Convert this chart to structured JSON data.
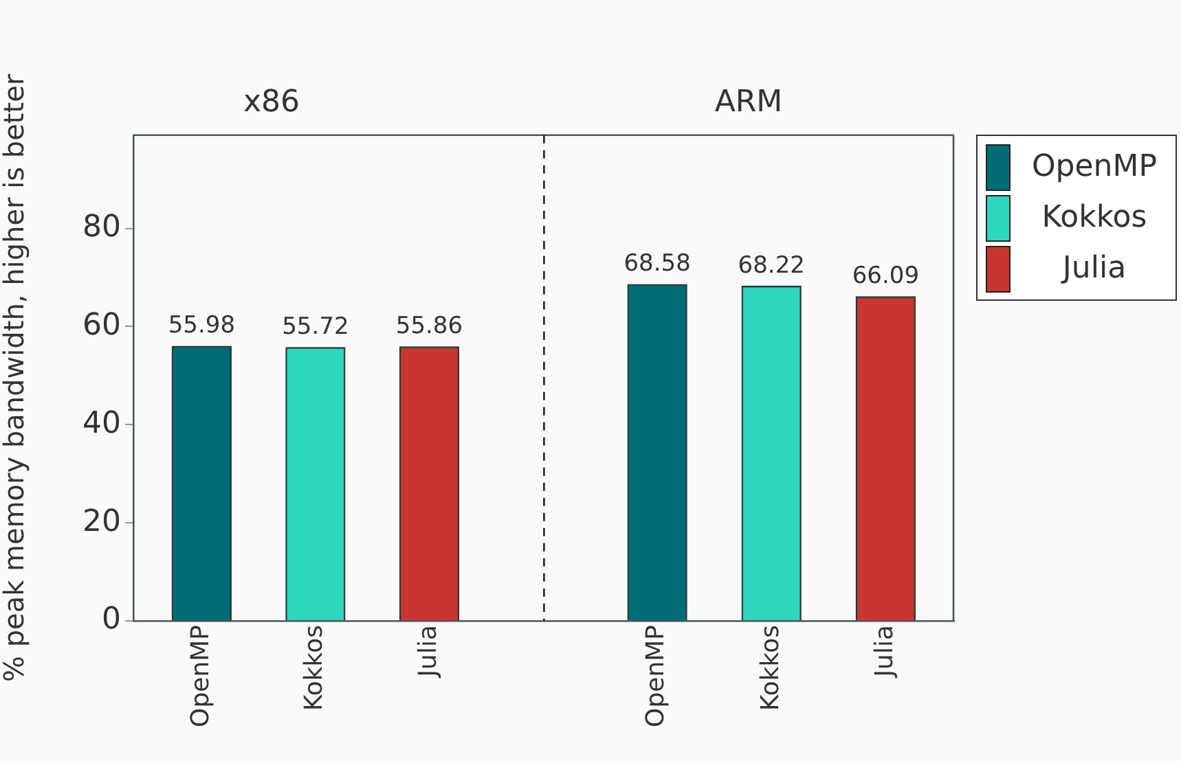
{
  "chart_data": [
    {
      "type": "bar",
      "title": "x86",
      "ylabel": "% peak memory bandwidth, higher is better",
      "categories": [
        "OpenMP",
        "Kokkos",
        "Julia"
      ],
      "series": [
        {
          "name": "OpenMP",
          "color": "#006c75",
          "values": [
            55.98,
            null,
            null
          ]
        },
        {
          "name": "Kokkos",
          "color": "#2ed6be",
          "values": [
            null,
            55.72,
            null
          ]
        },
        {
          "name": "Julia",
          "color": "#c9362f",
          "values": [
            null,
            null,
            55.86
          ]
        }
      ],
      "ylim": [
        0,
        99
      ],
      "yticks": [
        0,
        20,
        40,
        60,
        80
      ],
      "data_labels": true,
      "grid": false,
      "legend": "right"
    },
    {
      "type": "bar",
      "title": "ARM",
      "categories": [
        "OpenMP",
        "Kokkos",
        "Julia"
      ],
      "series": [
        {
          "color": "#006c75",
          "values": [
            68.58,
            null,
            null
          ]
        },
        {
          "color": "#2ed6be",
          "values": [
            null,
            68.22,
            null
          ]
        },
        {
          "color": "#c9362f",
          "values": [
            null,
            null,
            66.09
          ]
        }
      ],
      "ylim": [
        0,
        99
      ],
      "yticks": [
        0,
        20,
        40,
        60,
        80
      ],
      "tick_labels": "x",
      "data_labels": true,
      "grid": false
    }
  ]
}
